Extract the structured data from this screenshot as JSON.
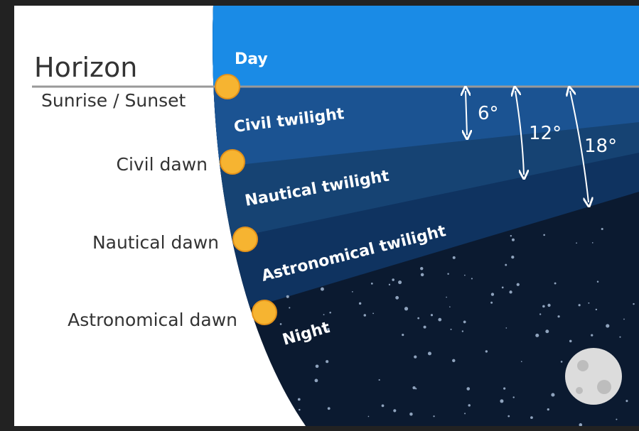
{
  "left_labels": {
    "horizon": "Horizon",
    "sunrise_sunset": "Sunrise / Sunset",
    "civil_dawn": "Civil dawn",
    "nautical_dawn": "Nautical dawn",
    "astronomical_dawn": "Astronomical dawn"
  },
  "bands": {
    "day": "Day",
    "civil": "Civil twilight",
    "nautical": "Nautical twilight",
    "astronomical": "Astronomical twilight",
    "night": "Night"
  },
  "angles": {
    "civil": "6°",
    "nautical": "12°",
    "astronomical": "18°"
  }
}
